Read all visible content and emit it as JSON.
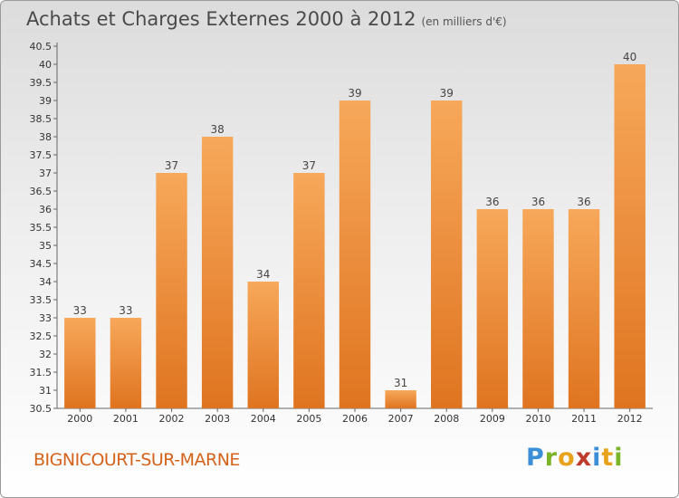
{
  "title": "Achats et Charges Externes 2000 à 2012",
  "subtitle": "(en milliers d'€)",
  "commune": "BIGNICOURT-SUR-MARNE",
  "logo": {
    "letters": [
      "P",
      "r",
      "o",
      "x",
      "i",
      "t",
      "i"
    ],
    "colors": [
      "#3b8fd6",
      "#7ab528",
      "#e8a21c",
      "#c03a2b",
      "#3b8fd6",
      "#e8a21c",
      "#7ab528"
    ]
  },
  "colors": {
    "bar_light": "#f7a85a",
    "bar_dark": "#df7420",
    "commune": "#d4621a"
  },
  "chart_data": {
    "type": "bar",
    "title": "Achats et Charges Externes 2000 à 2012",
    "subtitle": "(en milliers d'€)",
    "categories": [
      "2000",
      "2001",
      "2002",
      "2003",
      "2004",
      "2005",
      "2006",
      "2007",
      "2008",
      "2009",
      "2010",
      "2011",
      "2012"
    ],
    "values": [
      33,
      33,
      37,
      38,
      34,
      37,
      39,
      31,
      39,
      36,
      36,
      36,
      40
    ],
    "ylim": [
      30.5,
      40.5
    ],
    "yticks": [
      "30.5",
      "31",
      "31.5",
      "32",
      "32.5",
      "33",
      "33.5",
      "34",
      "34.5",
      "35",
      "35.5",
      "36",
      "36.5",
      "37",
      "37.5",
      "38",
      "38.5",
      "39",
      "39.5",
      "40",
      "40.5"
    ],
    "grid": false
  }
}
